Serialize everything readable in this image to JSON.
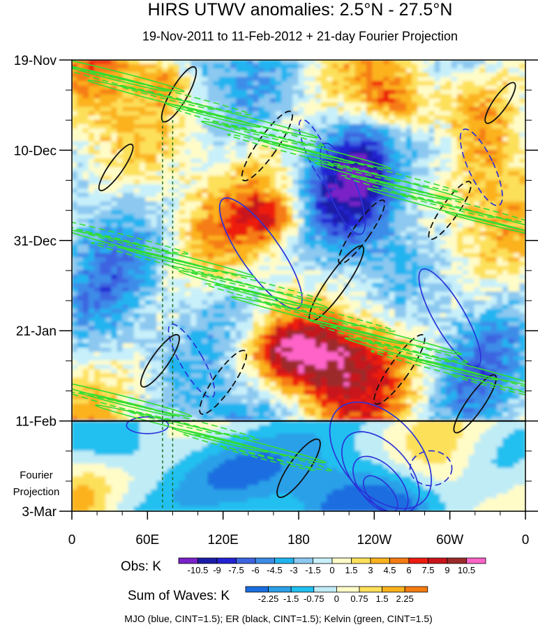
{
  "chart_data": {
    "type": "heatmap",
    "title": "HIRS UTWV anomalies: 2.5°N - 27.5°N",
    "subtitle": "19-Nov-2011 to 11-Feb-2012 + 21-day Fourier Projection",
    "y_tick_labels": [
      "19-Nov",
      "10-Dec",
      "31-Dec",
      "21-Jan",
      "11-Feb",
      "3-Mar"
    ],
    "y_tick_days": [
      0,
      21,
      42,
      63,
      84,
      105
    ],
    "x_tick_labels": [
      "0",
      "60E",
      "120E",
      "180",
      "120W",
      "60W",
      "0"
    ],
    "x_tick_lon": [
      0,
      60,
      120,
      180,
      240,
      300,
      360
    ],
    "projection_label": [
      "Fourier",
      "Projection"
    ],
    "present_day": 84,
    "vertical_markers_lon": [
      72,
      80
    ],
    "obs_colorbar": {
      "label": "Obs: K",
      "levels": [
        "-10.5",
        "-9",
        "-7.5",
        "-6",
        "-4.5",
        "-3",
        "-1.5",
        "0",
        "1.5",
        "3",
        "4.5",
        "6",
        "7.5",
        "9",
        "10.5"
      ],
      "colors": [
        "#7a22c8",
        "#1c1ca8",
        "#2222d2",
        "#3c64e0",
        "#3c8ce8",
        "#20b4f0",
        "#8cc8f0",
        "#c8f0fa",
        "#fffcc8",
        "#fde05a",
        "#fbb21e",
        "#f57c12",
        "#ee1c10",
        "#c8141a",
        "#9c2a2a",
        "#ff64c8"
      ]
    },
    "waves_colorbar": {
      "label": "Sum of Waves: K",
      "levels": [
        "-2.25",
        "-1.5",
        "-0.75",
        "0",
        "0.75",
        "1.5",
        "2.25"
      ],
      "colors": [
        "#1a6ee0",
        "#2ca0e8",
        "#20c0f0",
        "#c0ecf6",
        "#fffcc8",
        "#fde05a",
        "#fbb21e",
        "#f57c12"
      ]
    },
    "contours": [
      {
        "name": "MJO",
        "color": "blue",
        "cint": 1.5
      },
      {
        "name": "ER",
        "color": "black",
        "cint": 1.5
      },
      {
        "name": "Kelvin",
        "color": "green",
        "cint": 1.5
      }
    ],
    "legend_text": "MJO (blue, CINT=1.5); ER (black, CINT=1.5); Kelvin (green, CINT=1.5)",
    "x_range": [
      0,
      360
    ],
    "y_range_days": [
      0,
      105
    ]
  }
}
